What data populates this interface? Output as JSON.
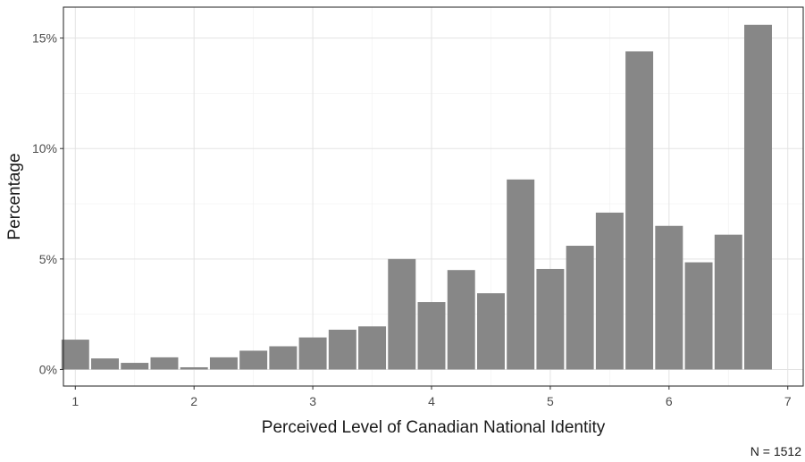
{
  "chart_data": {
    "type": "bar",
    "title": "",
    "xlabel": "Perceived Level of Canadian National Identity",
    "ylabel": "Percentage",
    "caption": "N = 1512",
    "x_ticks": [
      1,
      2,
      3,
      4,
      5,
      6,
      7
    ],
    "y_ticks": [
      0,
      5,
      10,
      15
    ],
    "y_tick_labels": [
      "0%",
      "5%",
      "10%",
      "15%"
    ],
    "xlim": [
      0.9,
      7.13
    ],
    "ylim": [
      -0.75,
      16.4
    ],
    "bar_width": 0.233,
    "grid": true,
    "bar_color": "#878787",
    "x": [
      1.0,
      1.25,
      1.5,
      1.75,
      2.0,
      2.25,
      2.5,
      2.75,
      3.0,
      3.25,
      3.5,
      3.75,
      4.0,
      4.25,
      4.5,
      4.75,
      5.0,
      5.25,
      5.5,
      5.75,
      6.0,
      6.25,
      6.5,
      6.75,
      7.0
    ],
    "values": [
      1.35,
      0.5,
      0.3,
      0.55,
      0.1,
      0.55,
      0.85,
      1.05,
      1.45,
      1.8,
      1.95,
      5.0,
      3.05,
      4.5,
      3.45,
      8.6,
      4.55,
      5.6,
      7.1,
      14.4,
      6.5,
      4.85,
      6.1,
      15.6,
      0
    ],
    "x_note": "bars sit at bin centers; see x_centers",
    "x_centers": [
      1.0,
      1.25,
      1.5,
      1.75,
      2.0,
      2.25,
      2.5,
      2.75,
      3.0,
      3.25,
      3.5,
      3.75,
      4.0,
      4.25,
      4.5,
      4.75,
      5.0,
      5.25,
      5.5,
      5.75,
      6.0,
      6.25,
      6.5,
      6.75,
      7.0
    ]
  }
}
